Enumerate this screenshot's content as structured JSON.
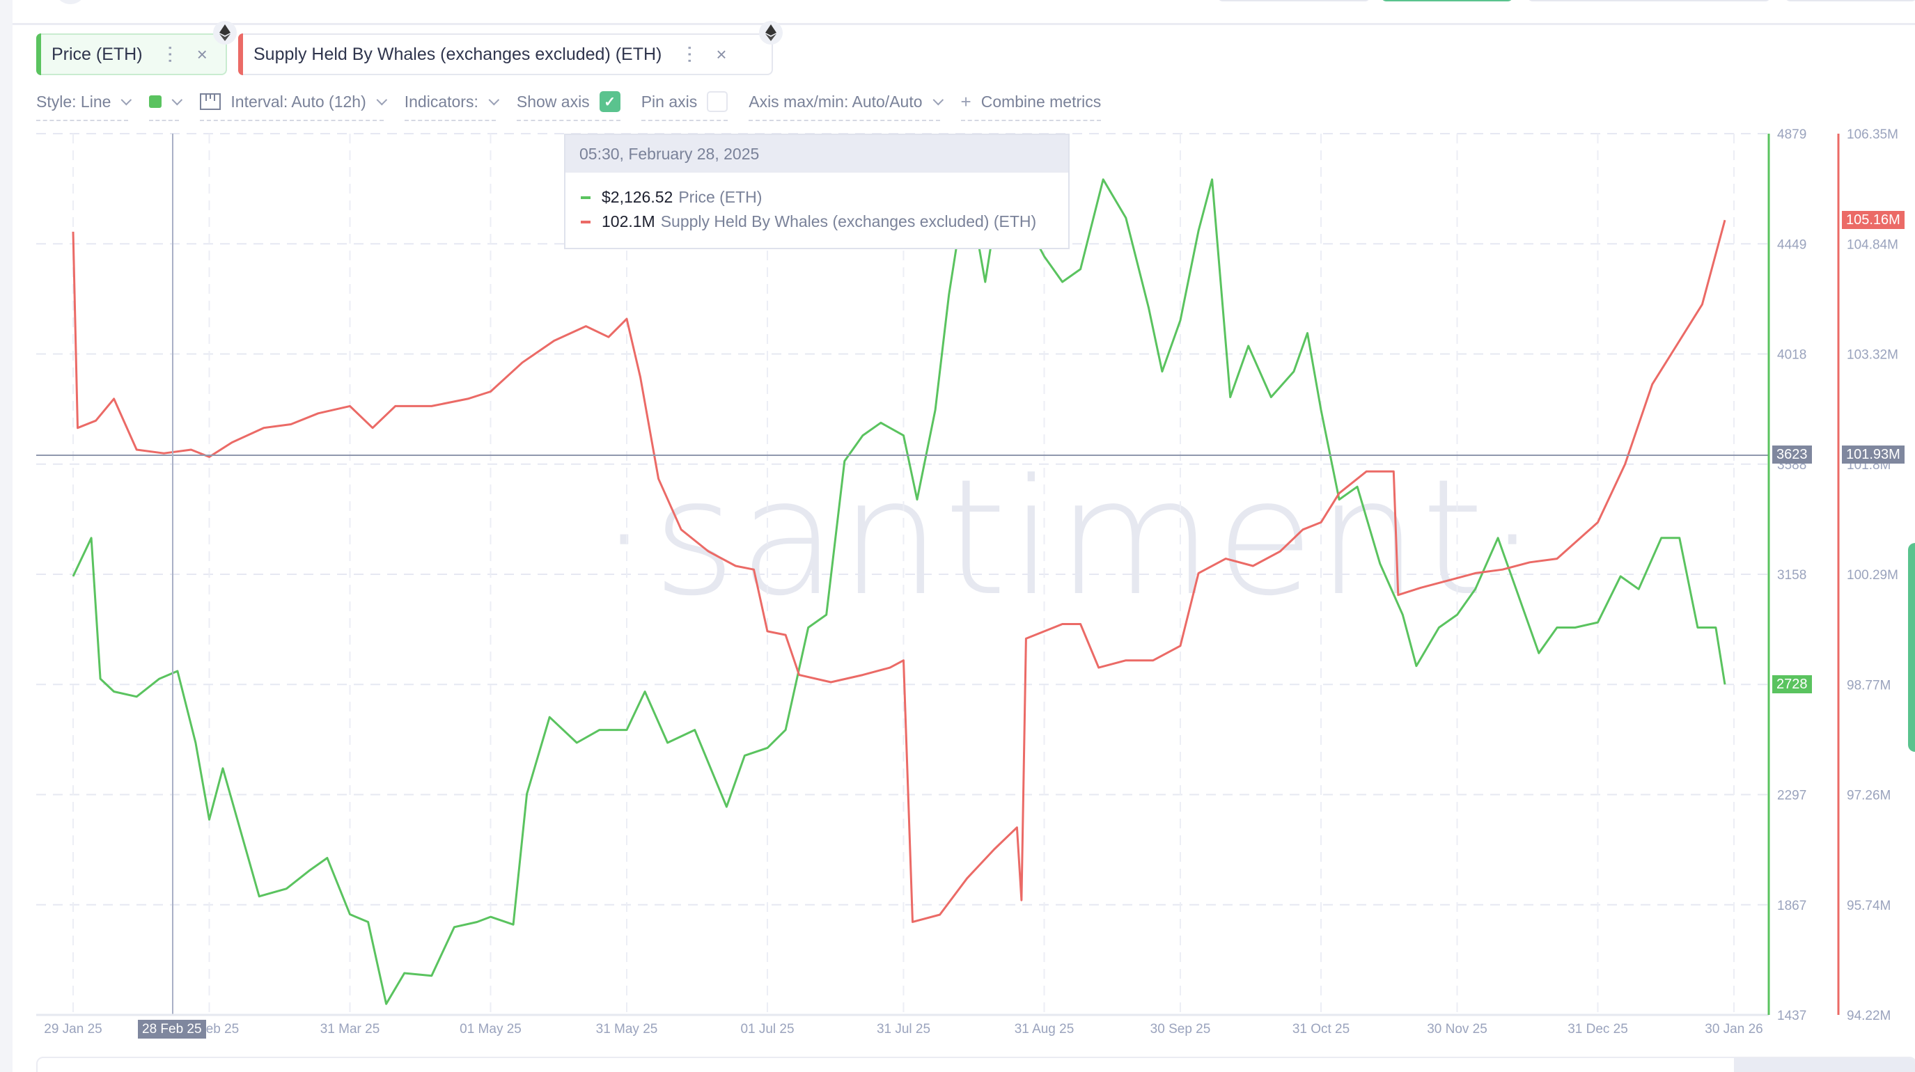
{
  "metrics": [
    {
      "label": "Price (ETH)",
      "color": "#5ac35f",
      "asset_icon": "ethereum-icon"
    },
    {
      "label": "Supply Held By Whales (exchanges excluded) (ETH)",
      "color": "#eb6a66",
      "asset_icon": "ethereum-icon"
    }
  ],
  "toolbar": {
    "style_label": "Style: Line",
    "color_swatch": "#5ac35f",
    "interval_label": "Interval: Auto (12h)",
    "indicators_label": "Indicators:",
    "show_axis_label": "Show axis",
    "show_axis_checked": true,
    "pin_axis_label": "Pin axis",
    "pin_axis_checked": false,
    "axis_maxmin_label": "Axis max/min: Auto/Auto",
    "combine_label": "Combine metrics"
  },
  "tooltip": {
    "timestamp": "05:30, February 28, 2025",
    "rows": [
      {
        "value": "$2,126.52",
        "name": "Price (ETH)",
        "color": "#5ac35f"
      },
      {
        "value": "102.1M",
        "name": "Supply Held By Whales (exchanges excluded) (ETH)",
        "color": "#eb6a66"
      }
    ]
  },
  "crosshair": {
    "x_label": "28 Feb 25",
    "price_label": "3623",
    "supply_label": "101.93M"
  },
  "last_values": {
    "price": "2728",
    "supply": "105.16M"
  },
  "watermark": "·santiment·",
  "chart_data": {
    "type": "line",
    "title": "",
    "xlabel": "",
    "x_ticks": [
      "29 Jan 25",
      "28 Feb 25",
      "31 Mar 25",
      "01 May 25",
      "31 May 25",
      "01 Jul 25",
      "31 Jul 25",
      "31 Aug 25",
      "30 Sep 25",
      "31 Oct 25",
      "30 Nov 25",
      "31 Dec 25",
      "30 Jan 26"
    ],
    "y_axes": [
      {
        "name": "Price (ETH)",
        "color": "#5ac35f",
        "ticks": [
          "4879",
          "4449",
          "4018",
          "3588",
          "3158",
          "2728",
          "2297",
          "1867",
          "1437"
        ],
        "ylim": [
          1437,
          4879
        ]
      },
      {
        "name": "Supply Held By Whales (exchanges excluded) (ETH)",
        "color": "#eb6a66",
        "ticks": [
          "106.35M",
          "104.84M",
          "103.32M",
          "101.8M",
          "100.29M",
          "98.77M",
          "97.26M",
          "95.74M",
          "94.22M"
        ],
        "ylim": [
          94.22,
          106.35
        ]
      }
    ],
    "grid": true,
    "series": [
      {
        "name": "Price (ETH)",
        "unit": "USD",
        "points": [
          [
            "29 Jan 25",
            3150
          ],
          [
            "02 Feb 25",
            3300
          ],
          [
            "04 Feb 25",
            2750
          ],
          [
            "07 Feb 25",
            2700
          ],
          [
            "12 Feb 25",
            2680
          ],
          [
            "17 Feb 25",
            2750
          ],
          [
            "21 Feb 25",
            2780
          ],
          [
            "25 Feb 25",
            2500
          ],
          [
            "28 Feb 25",
            2200
          ],
          [
            "03 Mar 25",
            2400
          ],
          [
            "07 Mar 25",
            2150
          ],
          [
            "11 Mar 25",
            1900
          ],
          [
            "17 Mar 25",
            1930
          ],
          [
            "22 Mar 25",
            2000
          ],
          [
            "26 Mar 25",
            2050
          ],
          [
            "31 Mar 25",
            1830
          ],
          [
            "04 Apr 25",
            1800
          ],
          [
            "08 Apr 25",
            1480
          ],
          [
            "12 Apr 25",
            1600
          ],
          [
            "18 Apr 25",
            1590
          ],
          [
            "23 Apr 25",
            1780
          ],
          [
            "28 Apr 25",
            1800
          ],
          [
            "01 May 25",
            1820
          ],
          [
            "06 May 25",
            1790
          ],
          [
            "09 May 25",
            2300
          ],
          [
            "14 May 25",
            2600
          ],
          [
            "20 May 25",
            2500
          ],
          [
            "25 May 25",
            2550
          ],
          [
            "31 May 25",
            2550
          ],
          [
            "04 Jun 25",
            2700
          ],
          [
            "09 Jun 25",
            2500
          ],
          [
            "15 Jun 25",
            2550
          ],
          [
            "22 Jun 25",
            2250
          ],
          [
            "26 Jun 25",
            2450
          ],
          [
            "01 Jul 25",
            2480
          ],
          [
            "05 Jul 25",
            2550
          ],
          [
            "10 Jul 25",
            2950
          ],
          [
            "14 Jul 25",
            3000
          ],
          [
            "18 Jul 25",
            3600
          ],
          [
            "22 Jul 25",
            3700
          ],
          [
            "26 Jul 25",
            3750
          ],
          [
            "31 Jul 25",
            3700
          ],
          [
            "03 Aug 25",
            3450
          ],
          [
            "07 Aug 25",
            3800
          ],
          [
            "10 Aug 25",
            4250
          ],
          [
            "14 Aug 25",
            4700
          ],
          [
            "18 Aug 25",
            4300
          ],
          [
            "22 Aug 25",
            4750
          ],
          [
            "25 Aug 25",
            4600
          ],
          [
            "31 Aug 25",
            4400
          ],
          [
            "04 Sep 25",
            4300
          ],
          [
            "08 Sep 25",
            4350
          ],
          [
            "13 Sep 25",
            4700
          ],
          [
            "18 Sep 25",
            4550
          ],
          [
            "23 Sep 25",
            4200
          ],
          [
            "26 Sep 25",
            3950
          ],
          [
            "30 Sep 25",
            4150
          ],
          [
            "04 Oct 25",
            4500
          ],
          [
            "07 Oct 25",
            4700
          ],
          [
            "11 Oct 25",
            3850
          ],
          [
            "15 Oct 25",
            4050
          ],
          [
            "20 Oct 25",
            3850
          ],
          [
            "25 Oct 25",
            3950
          ],
          [
            "28 Oct 25",
            4100
          ],
          [
            "31 Oct 25",
            3800
          ],
          [
            "04 Nov 25",
            3450
          ],
          [
            "08 Nov 25",
            3500
          ],
          [
            "13 Nov 25",
            3200
          ],
          [
            "18 Nov 25",
            3000
          ],
          [
            "21 Nov 25",
            2800
          ],
          [
            "26 Nov 25",
            2950
          ],
          [
            "30 Nov 25",
            3000
          ],
          [
            "04 Dec 25",
            3100
          ],
          [
            "09 Dec 25",
            3300
          ],
          [
            "13 Dec 25",
            3100
          ],
          [
            "18 Dec 25",
            2850
          ],
          [
            "22 Dec 25",
            2950
          ],
          [
            "26 Dec 25",
            2950
          ],
          [
            "31 Dec 25",
            2970
          ],
          [
            "05 Jan 26",
            3150
          ],
          [
            "09 Jan 26",
            3100
          ],
          [
            "14 Jan 26",
            3300
          ],
          [
            "18 Jan 26",
            3300
          ],
          [
            "22 Jan 26",
            2950
          ],
          [
            "26 Jan 26",
            2950
          ],
          [
            "28 Jan 26",
            2728
          ]
        ]
      },
      {
        "name": "Supply Held By Whales (exchanges excluded) (ETH)",
        "unit": "M ETH",
        "points": [
          [
            "29 Jan 25",
            105.0
          ],
          [
            "30 Jan 25",
            102.3
          ],
          [
            "03 Feb 25",
            102.4
          ],
          [
            "07 Feb 25",
            102.7
          ],
          [
            "12 Feb 25",
            102.0
          ],
          [
            "18 Feb 25",
            101.95
          ],
          [
            "24 Feb 25",
            102.0
          ],
          [
            "28 Feb 25",
            101.9
          ],
          [
            "05 Mar 25",
            102.1
          ],
          [
            "12 Mar 25",
            102.3
          ],
          [
            "18 Mar 25",
            102.35
          ],
          [
            "24 Mar 25",
            102.5
          ],
          [
            "31 Mar 25",
            102.6
          ],
          [
            "05 Apr 25",
            102.3
          ],
          [
            "10 Apr 25",
            102.6
          ],
          [
            "18 Apr 25",
            102.6
          ],
          [
            "26 Apr 25",
            102.7
          ],
          [
            "01 May 25",
            102.8
          ],
          [
            "08 May 25",
            103.2
          ],
          [
            "15 May 25",
            103.5
          ],
          [
            "22 May 25",
            103.7
          ],
          [
            "27 May 25",
            103.55
          ],
          [
            "31 May 25",
            103.8
          ],
          [
            "03 Jun 25",
            103.0
          ],
          [
            "07 Jun 25",
            101.6
          ],
          [
            "12 Jun 25",
            100.9
          ],
          [
            "18 Jun 25",
            100.6
          ],
          [
            "24 Jun 25",
            100.4
          ],
          [
            "28 Jun 25",
            100.35
          ],
          [
            "01 Jul 25",
            99.5
          ],
          [
            "05 Jul 25",
            99.45
          ],
          [
            "08 Jul 25",
            98.9
          ],
          [
            "15 Jul 25",
            98.8
          ],
          [
            "22 Jul 25",
            98.9
          ],
          [
            "28 Jul 25",
            99.0
          ],
          [
            "31 Jul 25",
            99.1
          ],
          [
            "02 Aug 25",
            95.5
          ],
          [
            "08 Aug 25",
            95.6
          ],
          [
            "14 Aug 25",
            96.1
          ],
          [
            "20 Aug 25",
            96.5
          ],
          [
            "25 Aug 25",
            96.8
          ],
          [
            "26 Aug 25",
            95.8
          ],
          [
            "27 Aug 25",
            99.4
          ],
          [
            "04 Sep 25",
            99.6
          ],
          [
            "08 Sep 25",
            99.6
          ],
          [
            "12 Sep 25",
            99.0
          ],
          [
            "18 Sep 25",
            99.1
          ],
          [
            "24 Sep 25",
            99.1
          ],
          [
            "30 Sep 25",
            99.3
          ],
          [
            "04 Oct 25",
            100.3
          ],
          [
            "10 Oct 25",
            100.5
          ],
          [
            "16 Oct 25",
            100.4
          ],
          [
            "22 Oct 25",
            100.6
          ],
          [
            "27 Oct 25",
            100.9
          ],
          [
            "31 Oct 25",
            101.0
          ],
          [
            "04 Nov 25",
            101.4
          ],
          [
            "10 Nov 25",
            101.7
          ],
          [
            "16 Nov 25",
            101.7
          ],
          [
            "17 Nov 25",
            100.0
          ],
          [
            "22 Nov 25",
            100.1
          ],
          [
            "28 Nov 25",
            100.2
          ],
          [
            "04 Dec 25",
            100.3
          ],
          [
            "10 Dec 25",
            100.35
          ],
          [
            "16 Dec 25",
            100.45
          ],
          [
            "22 Dec 25",
            100.5
          ],
          [
            "31 Dec 25",
            101.0
          ],
          [
            "06 Jan 26",
            101.8
          ],
          [
            "12 Jan 26",
            102.9
          ],
          [
            "18 Jan 26",
            103.5
          ],
          [
            "23 Jan 26",
            104.0
          ],
          [
            "28 Jan 26",
            105.16
          ]
        ]
      }
    ]
  }
}
